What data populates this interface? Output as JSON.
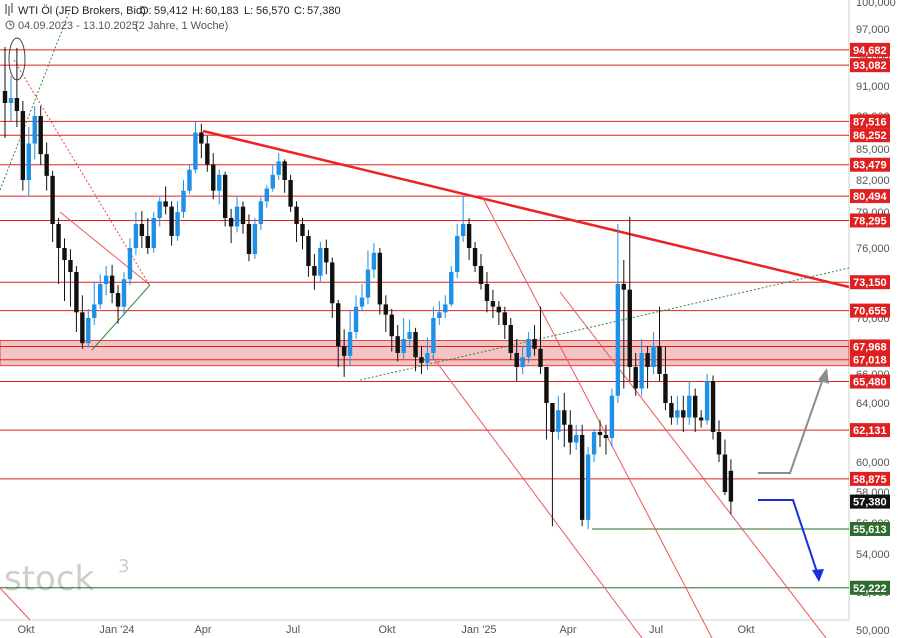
{
  "header": {
    "title": "WTI Öl (JFD Brokers, Bid)",
    "open_label": "O:",
    "open": "59,412",
    "high_label": "H:",
    "high": "60,183",
    "low_label": "L:",
    "low": "56,570",
    "close_label": "C:",
    "close": "57,380",
    "range": "04.09.2023 - 13.10.2025",
    "period": "(2 Jahre, 1 Woche)"
  },
  "watermark": {
    "text": "stock",
    "sup": "3"
  },
  "colors": {
    "up": "#1e90e6",
    "down": "#111111",
    "level": "#e02020",
    "support": "#2e6b2e",
    "trend": "#ee2222",
    "projection_up": "#8c8c8c",
    "projection_down": "#1a2ee0",
    "zone": "#f4c4c4"
  },
  "chart_data": {
    "type": "candlestick",
    "y_range": [
      50,
      100
    ],
    "y_ticks": [
      "50,000",
      "52,000",
      "54,000",
      "56,000",
      "58,000",
      "60,000",
      "62,000",
      "64,000",
      "66,000",
      "68,000",
      "70,000",
      "73,000",
      "76,000",
      "79,000",
      "82,000",
      "85,000",
      "88,000",
      "91,000",
      "94,000",
      "97,000",
      "100,000"
    ],
    "x_labels": [
      "Okt",
      "Jan '24",
      "Apr",
      "Jul",
      "Okt",
      "Jan '25",
      "Apr",
      "Jul",
      "Okt"
    ],
    "current_price": {
      "value": 57.38,
      "label": "57,380"
    },
    "resistance_levels": [
      {
        "value": 94.682,
        "label": "94,682"
      },
      {
        "value": 93.082,
        "label": "93,082"
      },
      {
        "value": 87.516,
        "label": "87,516"
      },
      {
        "value": 86.252,
        "label": "86,252"
      },
      {
        "value": 83.479,
        "label": "83,479"
      },
      {
        "value": 80.494,
        "label": "80,494"
      },
      {
        "value": 78.295,
        "label": "78,295"
      },
      {
        "value": 73.15,
        "label": "73,150"
      },
      {
        "value": 70.655,
        "label": "70,655"
      },
      {
        "value": 67.968,
        "label": "67,968"
      },
      {
        "value": 67.018,
        "label": "67,018"
      },
      {
        "value": 65.48,
        "label": "65,480"
      },
      {
        "value": 62.131,
        "label": "62,131"
      },
      {
        "value": 58.875,
        "label": "58,875"
      }
    ],
    "support_levels": [
      {
        "value": 55.613,
        "label": "55,613"
      },
      {
        "value": 52.222,
        "label": "52,222"
      }
    ],
    "zone": {
      "from": 67.018,
      "to": 67.968
    },
    "candles": [
      [
        90.5,
        89.3,
        95.0,
        86.0
      ],
      [
        89.3,
        89.8,
        92.0,
        87.5
      ],
      [
        89.8,
        88.5,
        94.9,
        87.0
      ],
      [
        88.5,
        82.0,
        89.5,
        81.0
      ],
      [
        82.0,
        85.5,
        87.0,
        80.5
      ],
      [
        85.5,
        88.0,
        89.0,
        84.0
      ],
      [
        88.0,
        84.5,
        89.0,
        83.5
      ],
      [
        84.5,
        82.4,
        85.6,
        81.0
      ],
      [
        82.4,
        78.0,
        82.9,
        76.5
      ],
      [
        78.0,
        76.0,
        78.5,
        73.0
      ],
      [
        76.0,
        75.0,
        76.8,
        71.5
      ],
      [
        75.0,
        74.0,
        75.9,
        71.0
      ],
      [
        74.0,
        70.5,
        74.5,
        69.0
      ],
      [
        70.5,
        68.2,
        72.0,
        67.8
      ],
      [
        68.2,
        70.0,
        70.8,
        67.9
      ],
      [
        70.0,
        71.2,
        73.2,
        69.5
      ],
      [
        71.2,
        73.0,
        73.8,
        70.8
      ],
      [
        73.0,
        73.7,
        74.5,
        72.0
      ],
      [
        73.7,
        72.2,
        74.6,
        71.3
      ],
      [
        72.2,
        71.0,
        72.9,
        69.6
      ],
      [
        71.0,
        73.4,
        74.0,
        70.2
      ],
      [
        73.4,
        76.0,
        76.8,
        72.9
      ],
      [
        76.0,
        78.0,
        79.0,
        75.4
      ],
      [
        78.0,
        77.0,
        79.1,
        76.0
      ],
      [
        77.0,
        76.0,
        78.5,
        75.5
      ],
      [
        76.0,
        78.5,
        79.0,
        75.6
      ],
      [
        78.5,
        80.0,
        80.4,
        77.8
      ],
      [
        80.0,
        79.5,
        81.4,
        78.8
      ],
      [
        79.5,
        77.0,
        80.0,
        76.2
      ],
      [
        77.0,
        79.0,
        80.0,
        76.6
      ],
      [
        79.0,
        81.0,
        82.0,
        78.5
      ],
      [
        81.0,
        83.0,
        83.5,
        80.7
      ],
      [
        83.0,
        86.5,
        87.5,
        82.7
      ],
      [
        86.5,
        85.5,
        87.3,
        84.1
      ],
      [
        85.5,
        83.5,
        86.2,
        82.8
      ],
      [
        83.5,
        81.0,
        84.6,
        80.2
      ],
      [
        81.0,
        82.5,
        83.0,
        79.7
      ],
      [
        82.5,
        78.5,
        82.8,
        77.8
      ],
      [
        78.5,
        77.8,
        79.3,
        76.4
      ],
      [
        77.8,
        79.5,
        80.5,
        77.3
      ],
      [
        79.5,
        78.0,
        80.0,
        77.2
      ],
      [
        78.0,
        75.5,
        78.8,
        74.9
      ],
      [
        75.5,
        78.0,
        78.5,
        75.1
      ],
      [
        78.0,
        80.0,
        80.4,
        77.5
      ],
      [
        80.0,
        81.2,
        81.5,
        79.4
      ],
      [
        81.2,
        82.5,
        83.5,
        80.9
      ],
      [
        82.5,
        83.8,
        84.6,
        82.0
      ],
      [
        83.8,
        82.0,
        84.0,
        80.8
      ],
      [
        82.0,
        79.5,
        82.5,
        79.0
      ],
      [
        79.5,
        78.0,
        80.0,
        76.5
      ],
      [
        78.0,
        77.0,
        78.5,
        75.9
      ],
      [
        77.0,
        74.5,
        77.5,
        73.6
      ],
      [
        74.5,
        73.7,
        75.5,
        72.5
      ],
      [
        73.7,
        76.0,
        76.5,
        73.2
      ],
      [
        76.0,
        74.8,
        76.7,
        73.8
      ],
      [
        74.8,
        71.3,
        75.2,
        70.0
      ],
      [
        71.3,
        68.0,
        71.6,
        66.5
      ],
      [
        68.0,
        67.3,
        69.2,
        65.8
      ],
      [
        67.3,
        69.0,
        70.6,
        66.6
      ],
      [
        69.0,
        71.0,
        72.0,
        68.5
      ],
      [
        71.0,
        71.8,
        73.0,
        70.7
      ],
      [
        71.8,
        74.2,
        75.8,
        71.2
      ],
      [
        74.2,
        75.6,
        76.4,
        73.5
      ],
      [
        75.6,
        71.2,
        76.0,
        70.3
      ],
      [
        71.2,
        70.3,
        72.0,
        69.0
      ],
      [
        70.3,
        68.7,
        70.8,
        67.6
      ],
      [
        68.7,
        67.5,
        69.5,
        66.9
      ],
      [
        67.5,
        68.5,
        70.0,
        67.1
      ],
      [
        68.5,
        69.0,
        69.9,
        67.9
      ],
      [
        69.0,
        67.2,
        69.3,
        66.2
      ],
      [
        67.2,
        66.8,
        68.0,
        66.0
      ],
      [
        66.8,
        67.5,
        68.6,
        66.3
      ],
      [
        67.5,
        70.0,
        71.0,
        67.0
      ],
      [
        70.0,
        70.5,
        71.5,
        69.5
      ],
      [
        70.5,
        71.2,
        72.0,
        70.0
      ],
      [
        71.2,
        74.0,
        74.5,
        71.0
      ],
      [
        74.0,
        77.0,
        78.0,
        73.5
      ],
      [
        77.0,
        78.0,
        80.5,
        76.5
      ],
      [
        78.0,
        76.0,
        78.5,
        75.0
      ],
      [
        76.0,
        74.5,
        76.5,
        74.0
      ],
      [
        74.5,
        73.0,
        75.5,
        72.5
      ],
      [
        73.0,
        71.5,
        74.0,
        70.5
      ],
      [
        71.5,
        71.0,
        72.5,
        70.0
      ],
      [
        71.0,
        70.5,
        71.5,
        69.5
      ],
      [
        70.5,
        69.5,
        71.0,
        68.5
      ],
      [
        69.5,
        67.5,
        70.0,
        67.0
      ],
      [
        67.5,
        66.5,
        68.5,
        65.5
      ],
      [
        66.5,
        67.2,
        68.0,
        66.0
      ],
      [
        67.2,
        68.5,
        69.0,
        66.8
      ],
      [
        68.5,
        67.8,
        69.5,
        67.3
      ],
      [
        67.8,
        66.5,
        71.0,
        66.0
      ],
      [
        66.5,
        64.0,
        66.5,
        61.5
      ],
      [
        64.0,
        62.0,
        64.0,
        55.8
      ],
      [
        62.0,
        63.5,
        64.5,
        61.5
      ],
      [
        63.5,
        62.5,
        64.7,
        61.0
      ],
      [
        62.5,
        61.3,
        63.5,
        60.5
      ],
      [
        61.3,
        61.8,
        62.5,
        60.8
      ],
      [
        61.8,
        56.2,
        62.5,
        55.8
      ],
      [
        56.2,
        60.5,
        61.0,
        55.6
      ],
      [
        60.5,
        62.0,
        62.2,
        60.0
      ],
      [
        62.0,
        61.8,
        62.8,
        61.0
      ],
      [
        61.8,
        61.6,
        62.5,
        60.5
      ],
      [
        61.6,
        64.5,
        65.0,
        61.0
      ],
      [
        64.5,
        73.0,
        78.0,
        64.0
      ],
      [
        73.0,
        72.5,
        75.0,
        65.0
      ],
      [
        72.5,
        66.5,
        78.6,
        65.5
      ],
      [
        66.5,
        65.0,
        67.5,
        64.5
      ],
      [
        65.0,
        67.5,
        68.5,
        64.5
      ],
      [
        67.5,
        66.5,
        68.0,
        65.0
      ],
      [
        66.5,
        68.0,
        69.0,
        66.0
      ],
      [
        68.0,
        66.0,
        71.0,
        65.5
      ],
      [
        66.0,
        64.0,
        68.0,
        63.5
      ],
      [
        64.0,
        63.0,
        64.5,
        62.5
      ],
      [
        63.0,
        63.5,
        64.5,
        62.5
      ],
      [
        63.5,
        63.0,
        64.5,
        62.0
      ],
      [
        63.0,
        64.5,
        65.5,
        62.5
      ],
      [
        64.5,
        63.0,
        65.0,
        62.0
      ],
      [
        63.0,
        62.8,
        63.5,
        62.3
      ],
      [
        62.8,
        65.5,
        66.0,
        62.5
      ],
      [
        65.5,
        62.0,
        65.9,
        61.5
      ],
      [
        62.0,
        60.5,
        62.8,
        60.0
      ],
      [
        60.5,
        58.0,
        61.5,
        57.8
      ],
      [
        59.412,
        57.38,
        60.183,
        56.57
      ]
    ],
    "candle_x_start": 5,
    "candle_x_step": 5.95
  }
}
